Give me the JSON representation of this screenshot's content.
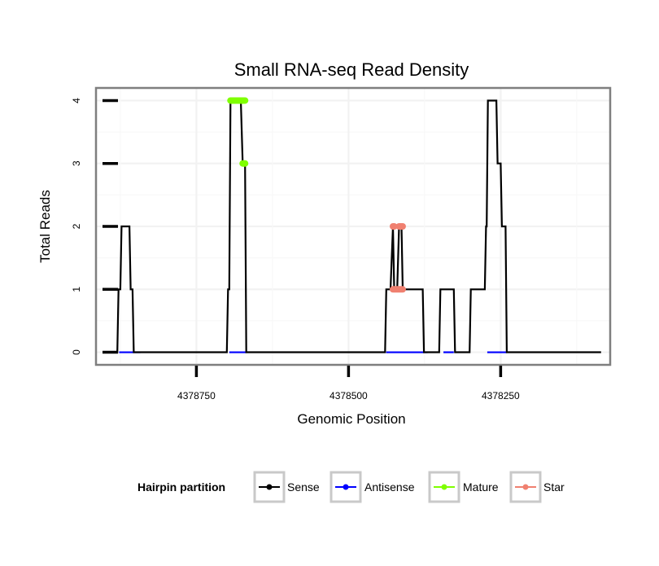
{
  "chart_data": {
    "type": "line",
    "title": "Small RNA-seq Read Density",
    "xlabel": "Genomic Position",
    "ylabel": "Total Reads",
    "x_reversed": true,
    "xlim": [
      4378915,
      4378070
    ],
    "ylim": [
      -0.2,
      4.2
    ],
    "xticks": [
      4378750,
      4378500,
      4378250
    ],
    "xtick_labels": [
      "4378750",
      "4378500",
      "4378250"
    ],
    "yticks": [
      0,
      1,
      2,
      3,
      4
    ],
    "ytick_labels": [
      "0",
      "1",
      "2",
      "3",
      "4"
    ],
    "grid": true,
    "legend": {
      "title": "Hairpin partition",
      "placement": "bottom",
      "entries": [
        {
          "label": "Sense",
          "color": "#000000"
        },
        {
          "label": "Antisense",
          "color": "#0000ff"
        },
        {
          "label": "Mature",
          "color": "#7fff00"
        },
        {
          "label": "Star",
          "color": "#f08070"
        }
      ]
    },
    "series": [
      {
        "name": "Sense",
        "color": "#000000",
        "x": [
          4378895,
          4378880,
          4378878,
          4378875,
          4378873,
          4378860,
          4378858,
          4378855,
          4378853,
          4378700,
          4378698,
          4378696,
          4378694,
          4378677,
          4378674,
          4378670,
          4378668,
          4378440,
          4378438,
          4378431,
          4378427,
          4378425,
          4378420,
          4378417,
          4378413,
          4378411,
          4378378,
          4378376,
          4378351,
          4378349,
          4378327,
          4378325,
          4378301,
          4378299,
          4378276,
          4378274,
          4378273,
          4378271,
          4378257,
          4378255,
          4378250,
          4378248,
          4378242,
          4378240,
          4378085
        ],
        "y": [
          0,
          0,
          1,
          1,
          2,
          2,
          1,
          1,
          0,
          0,
          1,
          1,
          4,
          4,
          3,
          3,
          0,
          0,
          1,
          1,
          2,
          1,
          1,
          2,
          2,
          1,
          1,
          0,
          0,
          1,
          1,
          0,
          0,
          1,
          1,
          2,
          2,
          4,
          4,
          3,
          3,
          2,
          2,
          0,
          0
        ]
      },
      {
        "name": "Antisense",
        "color": "#0000ff",
        "segments": [
          [
            4378877,
            4378842
          ],
          [
            4378696,
            4378668
          ],
          [
            4378438,
            4378370
          ],
          [
            4378344,
            4378327
          ],
          [
            4378272,
            4378240
          ]
        ],
        "y": 0
      },
      {
        "name": "Mature",
        "color": "#7fff00",
        "segments": [
          {
            "x1": 4378694,
            "x2": 4378670,
            "y": 4
          },
          {
            "x1": 4378674,
            "x2": 4378670,
            "y": 3
          }
        ]
      },
      {
        "name": "Star",
        "color": "#f08070",
        "segments": [
          {
            "x1": 4378427,
            "x2": 4378425,
            "y": 2
          },
          {
            "x1": 4378427,
            "x2": 4378411,
            "y": 1
          },
          {
            "x1": 4378417,
            "x2": 4378411,
            "y": 2
          }
        ]
      }
    ]
  }
}
